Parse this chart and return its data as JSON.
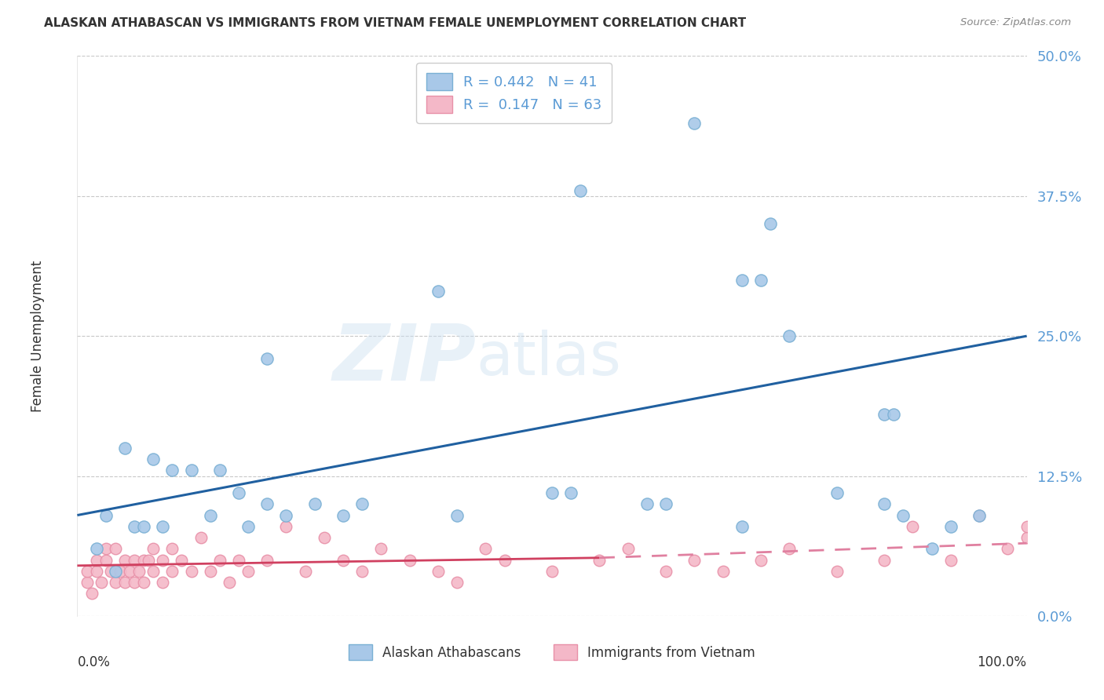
{
  "title": "ALASKAN ATHABASCAN VS IMMIGRANTS FROM VIETNAM FEMALE UNEMPLOYMENT CORRELATION CHART",
  "source": "Source: ZipAtlas.com",
  "ylabel": "Female Unemployment",
  "ytick_labels": [
    "0.0%",
    "12.5%",
    "25.0%",
    "37.5%",
    "50.0%"
  ],
  "ytick_values": [
    0,
    12.5,
    25.0,
    37.5,
    50.0
  ],
  "xlim": [
    0,
    100
  ],
  "ylim": [
    0,
    50
  ],
  "legend_labels": [
    "Alaskan Athabascans",
    "Immigrants from Vietnam"
  ],
  "R_blue": 0.442,
  "N_blue": 41,
  "R_pink": 0.147,
  "N_pink": 63,
  "blue_scatter_color": "#a8c8e8",
  "blue_edge_color": "#7ab0d4",
  "pink_scatter_color": "#f4b8c8",
  "pink_edge_color": "#e890a8",
  "trendline_blue": "#2060a0",
  "trendline_pink_solid": "#d04060",
  "trendline_pink_dashed": "#e080a0",
  "blue_scatter_x": [
    10,
    20,
    38,
    53,
    65,
    70,
    72,
    73,
    75,
    80,
    85,
    86,
    95,
    5,
    8,
    12,
    15,
    17,
    20,
    22,
    25,
    40,
    52,
    60,
    85,
    87,
    3,
    6,
    9,
    4,
    2,
    18,
    28,
    7,
    50,
    14,
    30,
    62,
    70,
    90,
    92
  ],
  "blue_scatter_y": [
    13,
    23,
    29,
    38,
    44,
    30,
    30,
    35,
    25,
    11,
    18,
    18,
    9,
    15,
    14,
    13,
    13,
    11,
    10,
    9,
    10,
    9,
    11,
    10,
    10,
    9,
    9,
    8,
    8,
    4,
    6,
    8,
    9,
    8,
    11,
    9,
    10,
    10,
    8,
    6,
    8
  ],
  "pink_scatter_x": [
    1,
    1,
    1.5,
    2,
    2,
    2.5,
    3,
    3,
    3.5,
    4,
    4,
    4.5,
    5,
    5,
    5.5,
    6,
    6,
    6.5,
    7,
    7,
    7.5,
    8,
    8,
    9,
    9,
    10,
    10,
    11,
    12,
    13,
    14,
    15,
    16,
    17,
    18,
    20,
    22,
    24,
    26,
    28,
    30,
    32,
    35,
    38,
    40,
    43,
    45,
    50,
    55,
    58,
    62,
    65,
    68,
    72,
    75,
    80,
    85,
    88,
    92,
    95,
    98,
    100,
    100
  ],
  "pink_scatter_y": [
    3,
    4,
    2,
    4,
    5,
    3,
    5,
    6,
    4,
    3,
    6,
    4,
    5,
    3,
    4,
    5,
    3,
    4,
    5,
    3,
    5,
    4,
    6,
    5,
    3,
    4,
    6,
    5,
    4,
    7,
    4,
    5,
    3,
    5,
    4,
    5,
    8,
    4,
    7,
    5,
    4,
    6,
    5,
    4,
    3,
    6,
    5,
    4,
    5,
    6,
    4,
    5,
    4,
    5,
    6,
    4,
    5,
    8,
    5,
    9,
    6,
    7,
    8
  ],
  "trendline_blue_x0": 0,
  "trendline_blue_y0": 9.0,
  "trendline_blue_x1": 100,
  "trendline_blue_y1": 25.0,
  "trendline_pink_x0": 0,
  "trendline_pink_y0": 4.5,
  "trendline_pink_x1": 55,
  "trendline_pink_x1_solid": 55,
  "trendline_pink_x2_dashed": 100,
  "trendline_pink_y1": 5.2,
  "trendline_pink_y2": 6.5
}
